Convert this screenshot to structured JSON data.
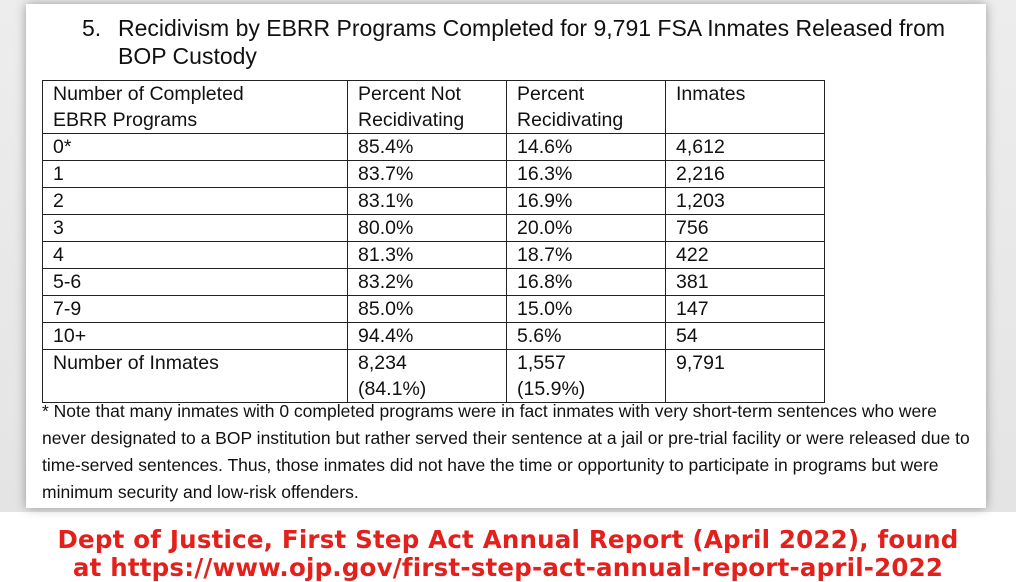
{
  "document": {
    "title_number": "5.",
    "title_text": "Recidivism by EBRR Programs Completed for 9,791 FSA Inmates Released from BOP Custody"
  },
  "table": {
    "headers": [
      [
        "Number of Completed",
        "EBRR Programs"
      ],
      [
        "Percent Not",
        "Recidivating"
      ],
      [
        "Percent",
        "Recidivating"
      ],
      [
        "Inmates"
      ]
    ],
    "rows": [
      [
        "0*",
        "85.4%",
        "14.6%",
        "4,612"
      ],
      [
        "1",
        "83.7%",
        "16.3%",
        "2,216"
      ],
      [
        "2",
        "83.1%",
        "16.9%",
        "1,203"
      ],
      [
        "3",
        "80.0%",
        "20.0%",
        "756"
      ],
      [
        "4",
        "81.3%",
        "18.7%",
        "422"
      ],
      [
        "5-6",
        "83.2%",
        "16.8%",
        "381"
      ],
      [
        "7-9",
        "85.0%",
        "15.0%",
        "147"
      ],
      [
        "10+",
        "94.4%",
        "5.6%",
        "54"
      ]
    ],
    "total_row": {
      "label": "Number of Inmates",
      "not_recidivating_count": "8,234",
      "not_recidivating_pct": "(84.1%)",
      "recidivating_count": "1,557",
      "recidivating_pct": "(15.9%)",
      "inmates": "9,791"
    }
  },
  "footnote": "* Note that many inmates with 0 completed programs were in fact inmates with very short-term sentences who were never designated to a BOP institution but rather served their sentence at a jail or pre-trial facility or were released due to time-served sentences. Thus, those inmates did not have the time or opportunity to participate in programs but were minimum security and low-risk offenders.",
  "citation": {
    "line1": "Dept of Justice, First Step Act Annual Report (April 2022), found",
    "line2": "at https://www.ojp.gov/first-step-act-annual-report-april-2022",
    "color": "#e3201b"
  }
}
